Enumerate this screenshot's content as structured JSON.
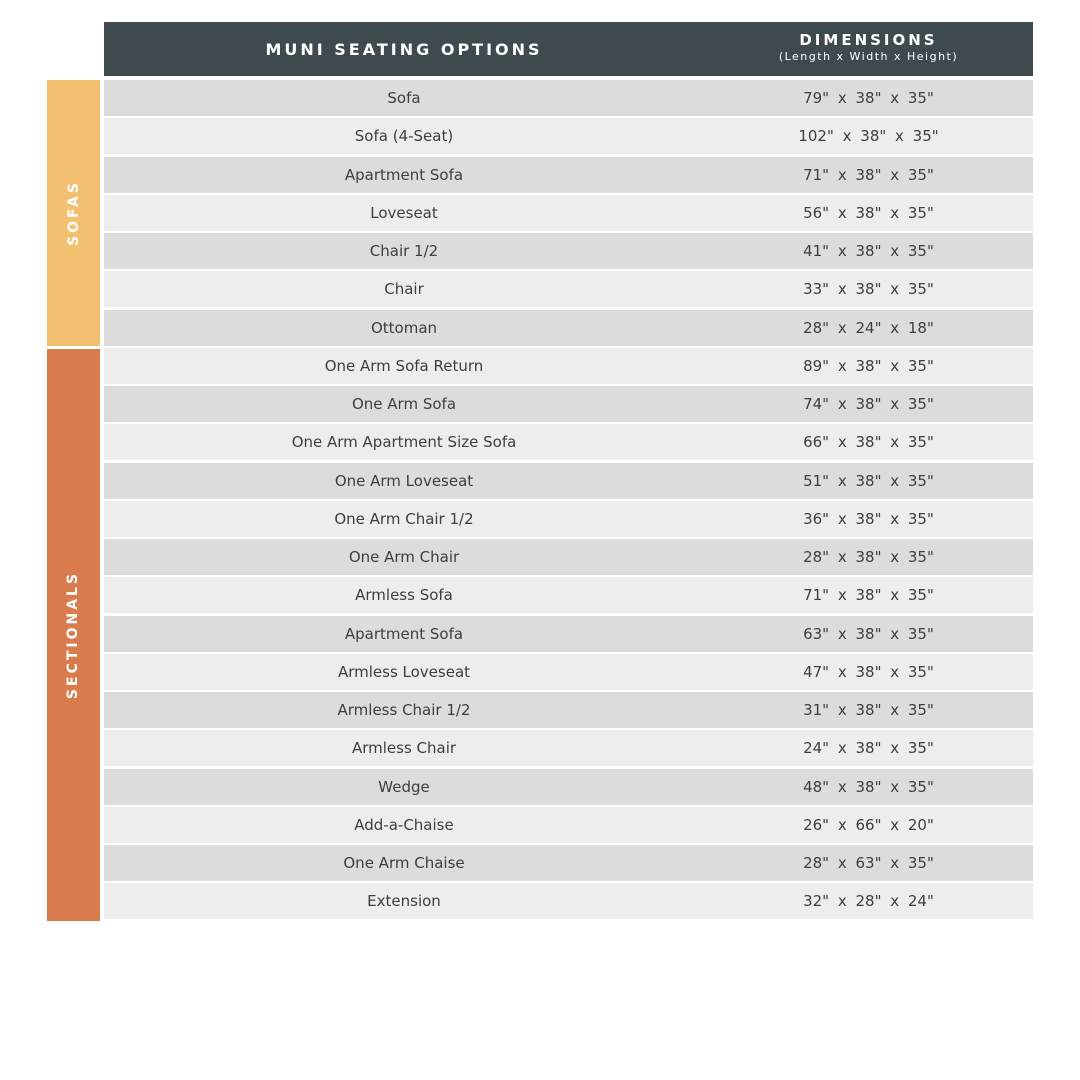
{
  "header": {
    "name_title": "MUNI SEATING OPTIONS",
    "dim_title": "DIMENSIONS",
    "dim_subtitle": "(Length x Width x Height)"
  },
  "colors": {
    "header": "#3f4a4f",
    "sofas": "#f2c070",
    "sectionals": "#d97c4d",
    "row_dark": "#dcdcdc",
    "row_light": "#ededed"
  },
  "groups": [
    {
      "label": "SOFAS",
      "rows": 7
    },
    {
      "label": "SECTIONALS",
      "rows": 15
    }
  ],
  "rows": [
    {
      "name": "Sofa",
      "dims": "79\" x 38\" x 35\""
    },
    {
      "name": "Sofa (4-Seat)",
      "dims": "102\" x 38\" x 35\""
    },
    {
      "name": "Apartment Sofa",
      "dims": "71\" x 38\" x 35\""
    },
    {
      "name": "Loveseat",
      "dims": "56\" x 38\" x 35\""
    },
    {
      "name": "Chair 1/2",
      "dims": "41\" x 38\" x 35\""
    },
    {
      "name": "Chair",
      "dims": "33\" x 38\" x 35\""
    },
    {
      "name": "Ottoman",
      "dims": "28\" x 24\" x 18\""
    },
    {
      "name": "One Arm Sofa Return",
      "dims": "89\" x 38\" x 35\""
    },
    {
      "name": "One Arm Sofa",
      "dims": "74\" x 38\" x 35\""
    },
    {
      "name": "One Arm Apartment Size Sofa",
      "dims": "66\" x 38\" x 35\""
    },
    {
      "name": "One Arm Loveseat",
      "dims": "51\" x 38\" x 35\""
    },
    {
      "name": "One Arm Chair 1/2",
      "dims": "36\" x 38\" x 35\""
    },
    {
      "name": "One Arm Chair",
      "dims": "28\" x 38\" x 35\""
    },
    {
      "name": "Armless Sofa",
      "dims": "71\" x 38\" x 35\""
    },
    {
      "name": "Apartment Sofa",
      "dims": "63\" x 38\" x 35\""
    },
    {
      "name": "Armless Loveseat",
      "dims": "47\" x 38\" x 35\""
    },
    {
      "name": "Armless Chair 1/2",
      "dims": "31\" x 38\" x 35\""
    },
    {
      "name": "Armless Chair",
      "dims": "24\" x 38\" x 35\""
    },
    {
      "name": "Wedge",
      "dims": "48\" x 38\" x 35\""
    },
    {
      "name": "Add-a-Chaise",
      "dims": "26\" x 66\" x 20\""
    },
    {
      "name": "One Arm Chaise",
      "dims": "28\" x 63\" x 35\""
    },
    {
      "name": "Extension",
      "dims": "32\" x 28\" x 24\""
    }
  ]
}
